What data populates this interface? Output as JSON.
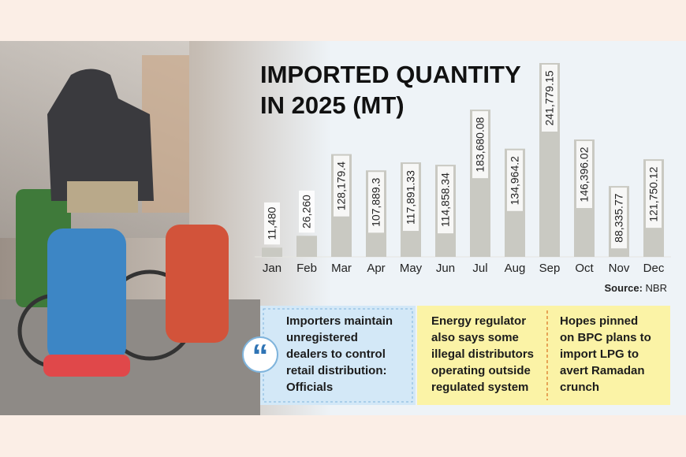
{
  "chart_data": {
    "type": "bar",
    "title": [
      "IMPORTED QUANTITY",
      "IN 2025 (MT)"
    ],
    "categories": [
      "Jan",
      "Feb",
      "Mar",
      "Apr",
      "May",
      "Jun",
      "Jul",
      "Aug",
      "Sep",
      "Oct",
      "Nov",
      "Dec"
    ],
    "values": [
      11480,
      26260,
      128179.4,
      107889.3,
      117891.33,
      114858.34,
      183680.08,
      134964.2,
      241779.15,
      146396.02,
      88335.77,
      121750.12
    ],
    "value_labels": [
      "11,480",
      "26,260",
      "128,179.4",
      "107,889.3",
      "117,891.33",
      "114,858.34",
      "183,680.08",
      "134,964.2",
      "241,779.15",
      "146,396.02",
      "88,335.77",
      "121,750.12"
    ],
    "color": "#c9c9c2",
    "source_label": "Source:",
    "source": "NBR"
  },
  "highlights": [
    {
      "lines": [
        "Importers maintain",
        "unregistered",
        "dealers to control",
        "retail distribution:",
        "Officials"
      ],
      "color": "#d3e8f7"
    },
    {
      "lines": [
        "Energy regulator",
        "also says some",
        "illegal distributors",
        "operating outside",
        "regulated system"
      ],
      "color": "#fbf3a6"
    },
    {
      "lines": [
        "Hopes pinned",
        "on BPC plans to",
        "import LPG to",
        "avert Ramadan",
        "crunch"
      ],
      "color": "#fbf3a6"
    }
  ]
}
